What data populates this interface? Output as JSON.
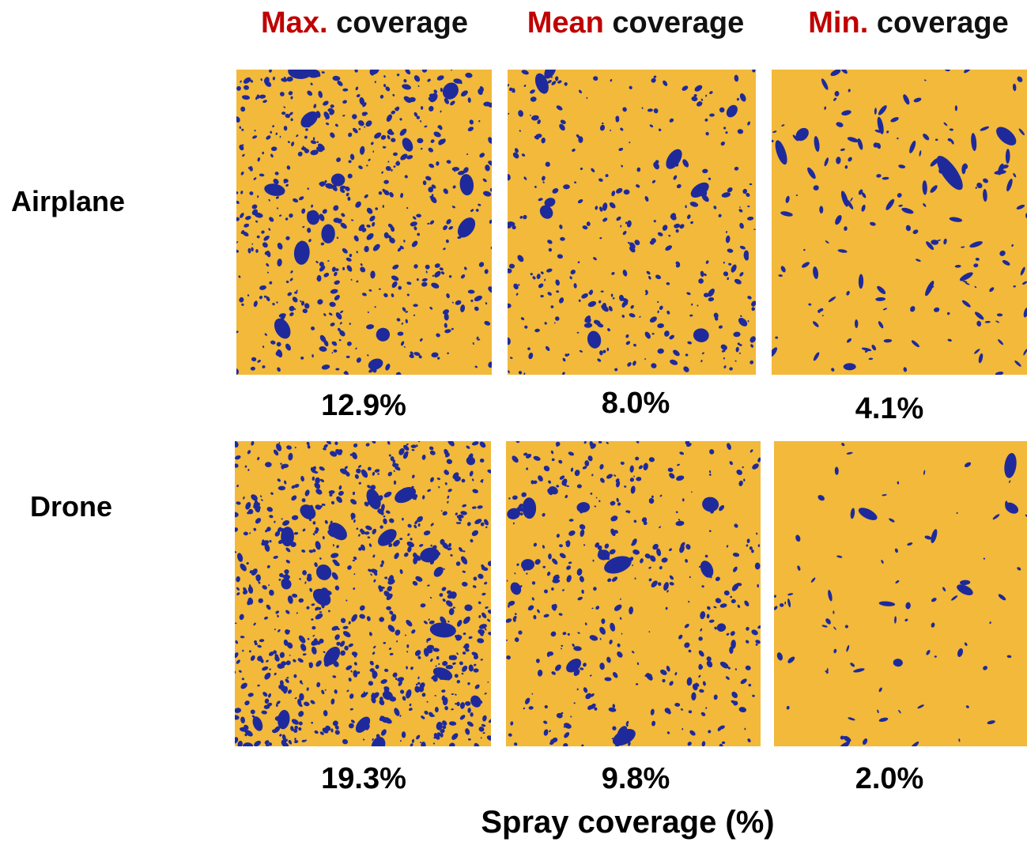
{
  "columns": [
    {
      "accent": "Max.",
      "rest": " coverage"
    },
    {
      "accent": "Mean",
      "rest": " coverage"
    },
    {
      "accent": "Min.",
      "rest": " coverage"
    }
  ],
  "rows": [
    {
      "label": "Airplane",
      "values": [
        "12.9%",
        "8.0%",
        "4.1%"
      ]
    },
    {
      "label": "Drone",
      "values": [
        "19.3%",
        "9.8%",
        "2.0%"
      ]
    }
  ],
  "axis_title": "Spray coverage (%)",
  "colors": {
    "card_bg": "#f2b93b",
    "droplet": "#1e2a9c",
    "accent": "#c00000",
    "text": "#000000"
  },
  "cards": [
    {
      "name": "airplane-max-card",
      "density": 0.129
    },
    {
      "name": "airplane-mean-card",
      "density": 0.08
    },
    {
      "name": "airplane-min-card",
      "density": 0.041
    },
    {
      "name": "drone-max-card",
      "density": 0.193
    },
    {
      "name": "drone-mean-card",
      "density": 0.098
    },
    {
      "name": "drone-min-card",
      "density": 0.02
    }
  ]
}
